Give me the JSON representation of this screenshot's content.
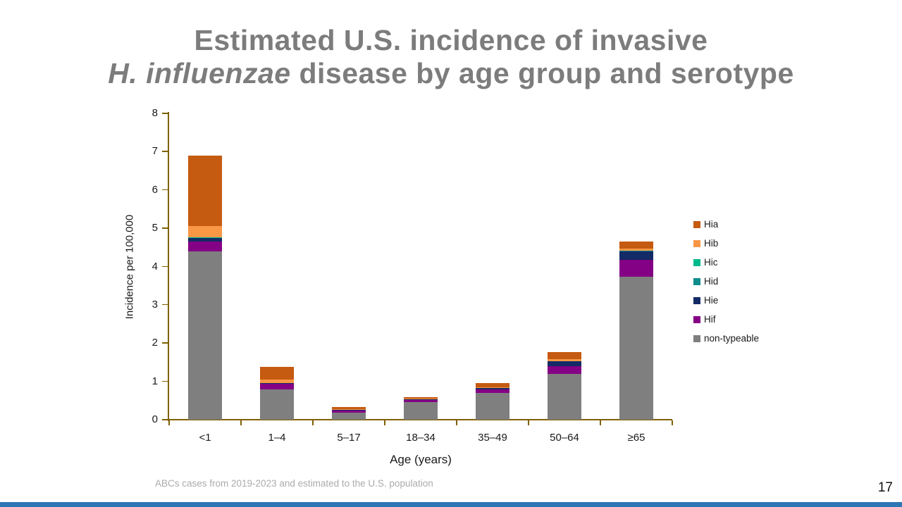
{
  "slide": {
    "title_line1": "Estimated U.S. incidence of invasive",
    "title_line2_italic": "H. influenzae",
    "title_line2_rest": " disease by age group and serotype",
    "footnote": "ABCs cases from 2019-2023 and estimated to the U.S. population",
    "page_number": "17"
  },
  "chart_data": {
    "type": "bar",
    "stacked": true,
    "title": "",
    "xlabel": "Age (years)",
    "ylabel": "Incidence per 100,000",
    "ylim": [
      0,
      8
    ],
    "yticks": [
      0,
      1,
      2,
      3,
      4,
      5,
      6,
      7,
      8
    ],
    "categories": [
      "<1",
      "1–4",
      "5–17",
      "18–34",
      "35–49",
      "50–64",
      "≥65"
    ],
    "series": [
      {
        "name": "non-typeable",
        "color": "#7F7F7F",
        "values": [
          4.4,
          0.79,
          0.18,
          0.46,
          0.7,
          1.19,
          3.74
        ]
      },
      {
        "name": "Hif",
        "color": "#840084",
        "values": [
          0.25,
          0.14,
          0.06,
          0.07,
          0.09,
          0.21,
          0.43
        ]
      },
      {
        "name": "Hie",
        "color": "#132B66",
        "values": [
          0.1,
          0.03,
          0.01,
          0.01,
          0.05,
          0.13,
          0.24
        ]
      },
      {
        "name": "Hid",
        "color": "#0E8C8D",
        "values": [
          0.01,
          0.0,
          0.0,
          0.0,
          0.0,
          0.0,
          0.01
        ]
      },
      {
        "name": "Hic",
        "color": "#00B98C",
        "values": [
          0.01,
          0.0,
          0.0,
          0.0,
          0.0,
          0.0,
          0.0
        ]
      },
      {
        "name": "Hib",
        "color": "#F99746",
        "values": [
          0.28,
          0.09,
          0.03,
          0.02,
          0.01,
          0.06,
          0.04
        ]
      },
      {
        "name": "Hia",
        "color": "#C55A11",
        "values": [
          1.85,
          0.33,
          0.06,
          0.03,
          0.1,
          0.17,
          0.2
        ]
      }
    ],
    "totals": [
      6.9,
      1.38,
      0.34,
      0.59,
      0.95,
      1.76,
      4.66
    ],
    "legend": [
      "Hia",
      "Hib",
      "Hic",
      "Hid",
      "Hie",
      "Hif",
      "non-typeable"
    ],
    "legend_position": "right",
    "axis_color": "#7F6000",
    "grid": false
  }
}
